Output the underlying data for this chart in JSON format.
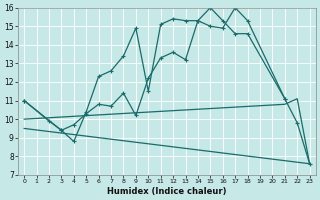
{
  "xlabel": "Humidex (Indice chaleur)",
  "xlim": [
    -0.5,
    23.5
  ],
  "ylim": [
    7,
    16
  ],
  "xticks": [
    0,
    1,
    2,
    3,
    4,
    5,
    6,
    7,
    8,
    9,
    10,
    11,
    12,
    13,
    14,
    15,
    16,
    17,
    18,
    19,
    20,
    21,
    22,
    23
  ],
  "yticks": [
    7,
    8,
    9,
    10,
    11,
    12,
    13,
    14,
    15,
    16
  ],
  "bg_color": "#c6e8e6",
  "line_color": "#1a6b6b",
  "line1_x": [
    0,
    2,
    3,
    4,
    5,
    6,
    7,
    8,
    9,
    10,
    11,
    12,
    13,
    14,
    15,
    16,
    17,
    18,
    21,
    22,
    23
  ],
  "line1_y": [
    11,
    9.9,
    9.4,
    9.7,
    10.3,
    10.8,
    10.7,
    11.4,
    10.2,
    12.2,
    13.3,
    13.6,
    13.2,
    15.3,
    15.0,
    14.9,
    16.0,
    15.3,
    11.1,
    9.8,
    7.6
  ],
  "line2_x": [
    0,
    3,
    4,
    5,
    6,
    7,
    8,
    9,
    10,
    11,
    12,
    13,
    14,
    15,
    16,
    17,
    18,
    21
  ],
  "line2_y": [
    11,
    9.4,
    8.8,
    10.4,
    12.3,
    12.6,
    13.4,
    14.9,
    11.5,
    15.1,
    15.4,
    15.3,
    15.3,
    16.0,
    15.3,
    14.6,
    14.6,
    11.1
  ],
  "line3_x": [
    0,
    21,
    22,
    23
  ],
  "line3_y": [
    10.0,
    10.8,
    11.1,
    7.6
  ],
  "line4_x": [
    0,
    23
  ],
  "line4_y": [
    9.5,
    7.6
  ]
}
